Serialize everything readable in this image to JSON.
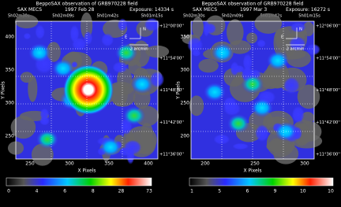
{
  "panels": [
    {
      "title": "BeppoSAX observation of GRB970228 field",
      "instrument": "SAX MECS",
      "date": "1997 Feb 28",
      "exposure": "Exposure: 14334 s",
      "ra_labels": [
        "5h02m30s",
        "5h02m09s",
        "5h01m42s",
        "5h01m15s"
      ],
      "dec_labels": [
        "+12°00'00''",
        "+11°54'00''",
        "+11°48'00''",
        "+11°42'00''",
        "+11°36'00''"
      ],
      "y_ticks": [
        "400",
        "350",
        "300",
        "250"
      ],
      "x_ticks": [
        "250",
        "300",
        "350",
        "400"
      ],
      "x_label": "X Pixels",
      "y_label": "Y Pixels",
      "north": "N",
      "east": "E",
      "scale": "2 arcmin",
      "colorbar_labels": [
        "0",
        "4",
        "6",
        "8",
        "28",
        "73"
      ]
    },
    {
      "title": "BeppoSAX observation of GRB970228 field",
      "instrument": "SAX MECS",
      "date": "1997 Mar  3",
      "exposure": "Exposure: 16272 s",
      "ra_labels": [
        "5h02m30s",
        "5h02m09s",
        "5h01m42s",
        "5h01m15s"
      ],
      "dec_labels": [
        "+12°06'00''",
        "+11°54'00''",
        "+11°48'00''",
        "+11°42'00''",
        "+11°36'00''"
      ],
      "y_ticks": [
        "350",
        "300",
        "250",
        "200"
      ],
      "x_ticks": [
        "200",
        "250",
        "300"
      ],
      "x_label": "X Pixels",
      "y_label": "Y Pixels",
      "north": "N",
      "east": "E",
      "scale": "2 arcmin",
      "colorbar_labels": [
        "1",
        "5",
        "6",
        "9",
        "10",
        "10"
      ]
    }
  ]
}
